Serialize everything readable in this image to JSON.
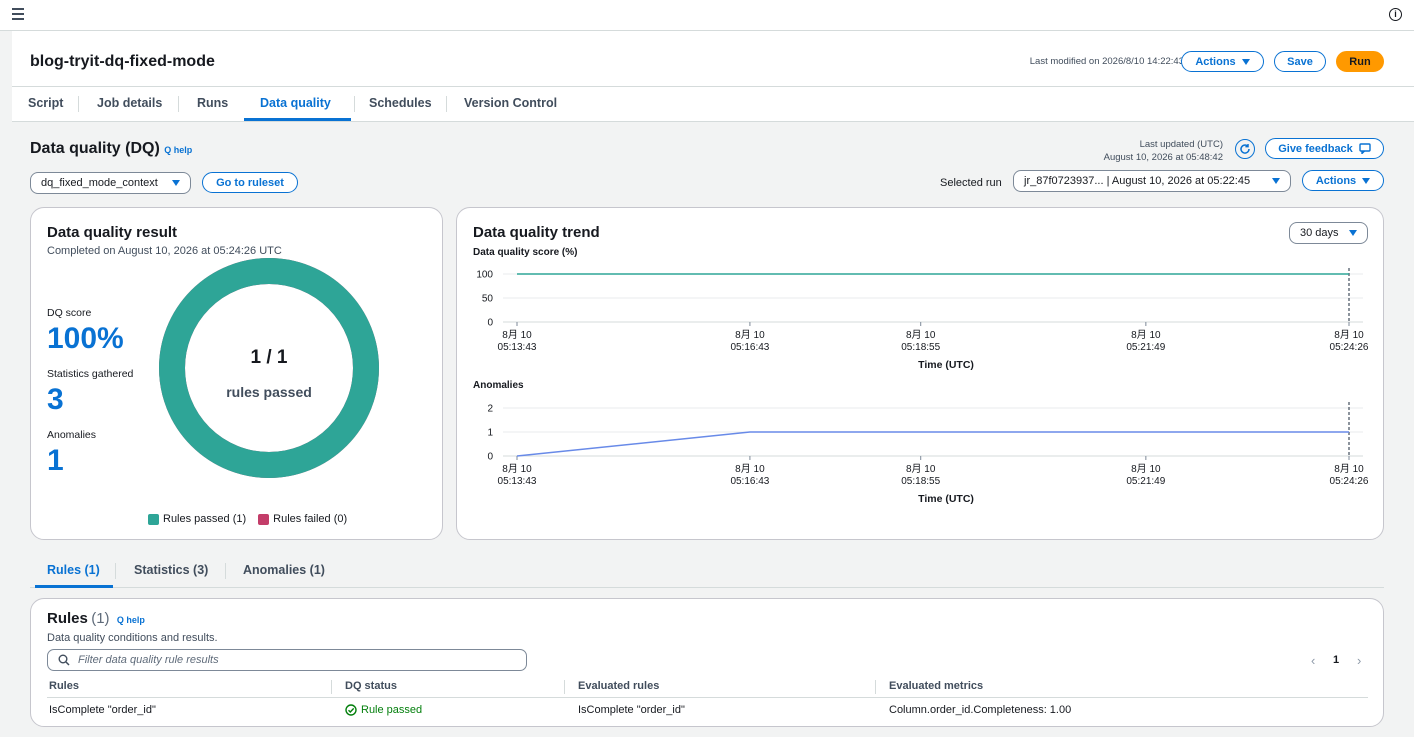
{
  "header": {
    "job_name": "blog-tryit-dq-fixed-mode",
    "last_modified": "Last modified on 2026/8/10 14:22:43",
    "actions_label": "Actions",
    "save_label": "Save",
    "run_label": "Run"
  },
  "tabs": [
    "Script",
    "Job details",
    "Runs",
    "Data quality",
    "Schedules",
    "Version Control"
  ],
  "dq": {
    "title": "Data quality (DQ)",
    "q_help": "Q help",
    "last_updated_label": "Last updated (UTC)",
    "last_updated_value": "August 10, 2026 at 05:48:42",
    "give_feedback": "Give feedback",
    "context_select": "dq_fixed_mode_context",
    "go_to_ruleset": "Go to ruleset",
    "selected_run_label": "Selected run",
    "selected_run_value": "jr_87f0723937... | August 10, 2026 at 05:22:45",
    "actions_label": "Actions"
  },
  "result": {
    "title": "Data quality result",
    "completed": "Completed on August 10, 2026 at 05:24:26 UTC",
    "dq_score_label": "DQ score",
    "dq_score_value": "100%",
    "stats_label": "Statistics gathered",
    "stats_value": "3",
    "anomalies_label": "Anomalies",
    "anomalies_value": "1",
    "rules_ratio": "1 / 1",
    "rules_passed_text": "rules passed",
    "legend_passed": "Rules passed (1)",
    "legend_failed": "Rules failed (0)",
    "passed_fraction": 1.0,
    "passed_color": "#2ea597",
    "failed_color": "#c33d69"
  },
  "trend": {
    "title": "Data quality trend",
    "range_select": "30 days",
    "line_color_score": "#2ea597",
    "line_color_anomaly": "#688ae8"
  },
  "chart_data": [
    {
      "type": "line",
      "title": "Data quality score (%)",
      "xlabel": "Time (UTC)",
      "ylabel": "",
      "x_tick_labels": [
        [
          "8月 10",
          "05:13:43"
        ],
        [
          "8月 10",
          "05:16:43"
        ],
        [
          "8月 10",
          "05:18:55"
        ],
        [
          "8月 10",
          "05:21:49"
        ],
        [
          "8月 10",
          "05:24:26"
        ]
      ],
      "y_ticks": [
        "100",
        "50",
        "0"
      ],
      "ylim": [
        0,
        100
      ],
      "x": [
        "05:13:43",
        "05:24:26"
      ],
      "values": [
        100,
        100
      ]
    },
    {
      "type": "line",
      "title": "Anomalies",
      "xlabel": "Time (UTC)",
      "ylabel": "",
      "x_tick_labels": [
        [
          "8月 10",
          "05:13:43"
        ],
        [
          "8月 10",
          "05:16:43"
        ],
        [
          "8月 10",
          "05:18:55"
        ],
        [
          "8月 10",
          "05:21:49"
        ],
        [
          "8月 10",
          "05:24:26"
        ]
      ],
      "y_ticks": [
        "2",
        "1",
        "0"
      ],
      "ylim": [
        0,
        2
      ],
      "x": [
        "05:13:43",
        "05:16:43",
        "05:24:26"
      ],
      "values": [
        0,
        1,
        1
      ]
    }
  ],
  "bottom_tabs": [
    "Rules (1)",
    "Statistics (3)",
    "Anomalies (1)"
  ],
  "rules": {
    "title": "Rules",
    "count": "(1)",
    "q_help": "Q help",
    "description": "Data quality conditions and results.",
    "filter_placeholder": "Filter data quality rule results",
    "page": "1",
    "columns": [
      "Rules",
      "DQ status",
      "Evaluated rules",
      "Evaluated metrics"
    ],
    "rows": [
      {
        "rule": "IsComplete \"order_id\"",
        "status": "Rule passed",
        "evaluated_rule": "IsComplete \"order_id\"",
        "metrics": "Column.order_id.Completeness: 1.00"
      }
    ]
  }
}
